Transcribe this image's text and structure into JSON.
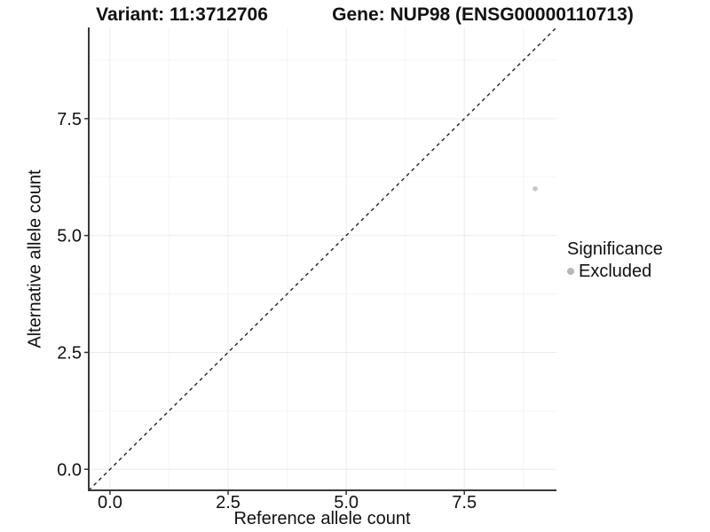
{
  "chart_data": {
    "type": "scatter",
    "titles": [
      "Variant: 11:3712706",
      "Gene: NUP98 (ENSG00000110713)"
    ],
    "xlabel": "Reference allele count",
    "ylabel": "Alternative allele count",
    "xlim": [
      -0.45,
      9.45
    ],
    "ylim": [
      -0.45,
      9.45
    ],
    "x_ticks": [
      0,
      2.5,
      5,
      7.5
    ],
    "y_ticks": [
      0,
      2.5,
      5,
      7.5
    ],
    "x_minor_ticks": [
      1.25,
      3.75,
      6.25,
      8.75
    ],
    "y_minor_ticks": [
      1.25,
      3.75,
      6.25,
      8.75
    ],
    "tick_decimals": 1,
    "grid": "major+minor",
    "reference_line": {
      "type": "identity",
      "style": "dashed"
    },
    "series": [
      {
        "name": "Excluded",
        "color": "#c7c7c7",
        "points": [
          {
            "x": 9,
            "y": 6
          }
        ]
      }
    ],
    "legend": {
      "title": "Significance",
      "position": "right",
      "items": [
        {
          "label": "Excluded",
          "color": "#b8b8b8"
        }
      ]
    }
  },
  "colors": {
    "text": "#111111",
    "axis_line": "#383838",
    "tick_mark": "#333333",
    "grid_major": "#ebebeb",
    "grid_minor": "#f4f4f4",
    "reference_line": "#222222",
    "background": "#ffffff"
  }
}
